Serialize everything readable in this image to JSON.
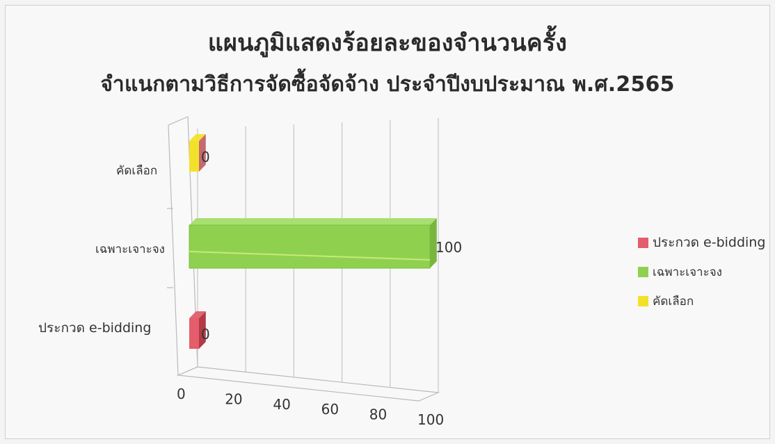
{
  "chart_data": {
    "type": "bar",
    "orientation": "horizontal",
    "title": "แผนภูมิแสดงร้อยละของจำนวนครั้ง",
    "subtitle": "จำแนกตามวิธีการจัดซื้อจัดจ้าง ประจำปีงบประมาณ พ.ศ.2565",
    "categories": [
      "ประกวด e-bidding",
      "เฉพาะเจาะจง",
      "คัดเลือก"
    ],
    "values": [
      0,
      100,
      0
    ],
    "data_labels": [
      "0",
      "100",
      "0"
    ],
    "xlim": [
      0,
      100
    ],
    "xticks": [
      "0",
      "20",
      "40",
      "60",
      "80",
      "100"
    ],
    "xlabel": "",
    "ylabel": "",
    "grid": true,
    "legend_position": "right",
    "legend": [
      {
        "label": "ประกวด e-bidding",
        "color": "#e35d6a"
      },
      {
        "label": "เฉพาะเจาะจง",
        "color": "#8fd14f"
      },
      {
        "label": "คัดเลือก",
        "color": "#f2e12a"
      }
    ]
  }
}
